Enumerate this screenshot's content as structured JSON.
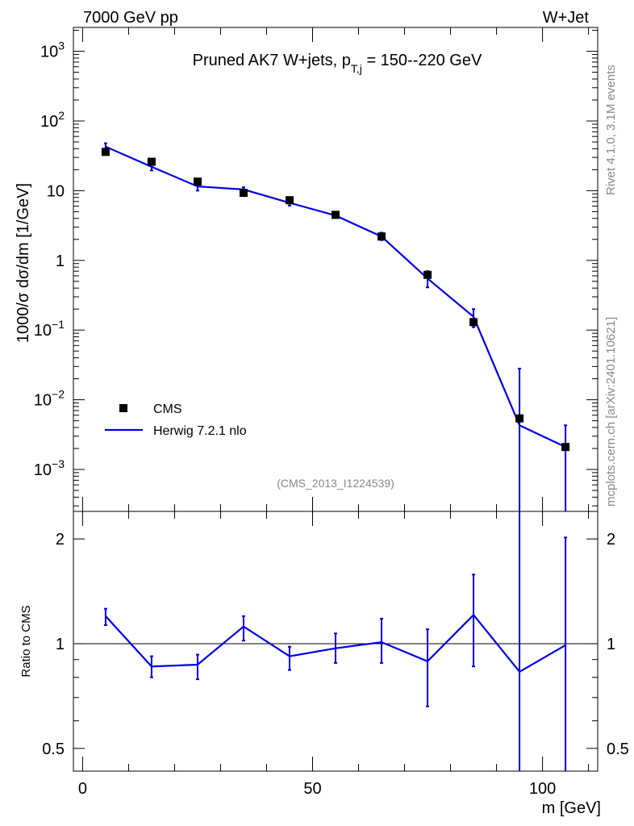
{
  "header": {
    "left_label": "7000 GeV pp",
    "right_label": "W+Jet"
  },
  "side_labels": {
    "rivet": "Rivet 4.1.0,  3.1M events",
    "mcplots": "mcplots.cern.ch [arXiv:2401.10621]"
  },
  "colors": {
    "data": "#000000",
    "mc": "#0000e6",
    "text_gray": "#888888"
  },
  "chart_data": [
    {
      "type": "scatter",
      "panel": "main",
      "title_pre": "Pruned AK7 W+jets, p",
      "title_sub": "T,j",
      "title_post": " = 150--220 GeV",
      "analysis_id": "(CMS_2013_I1224539)",
      "xlabel": "m [GeV]",
      "ylabel": "1000/σ  dσ/dm [1/GeV]",
      "yscale": "log",
      "xlim": [
        -2,
        112
      ],
      "ylim": [
        0.00025,
        2200
      ],
      "x_ticks": [
        0,
        50,
        100
      ],
      "y_tick_labels": [
        {
          "value": 1000,
          "base": "10",
          "exp": "3"
        },
        {
          "value": 100,
          "base": "10",
          "exp": "2"
        },
        {
          "value": 10,
          "base": "10",
          "exp": ""
        },
        {
          "value": 1,
          "base": "1",
          "exp": ""
        },
        {
          "value": 0.1,
          "base": "10",
          "exp": "−1"
        },
        {
          "value": 0.01,
          "base": "10",
          "exp": "−2"
        },
        {
          "value": 0.001,
          "base": "10",
          "exp": "−3"
        }
      ],
      "legend_placement": "lower-left",
      "series": [
        {
          "name": "CMS",
          "style": "markers",
          "x": [
            5,
            15,
            25,
            35,
            45,
            55,
            65,
            75,
            85,
            95,
            105
          ],
          "y": [
            36,
            26,
            13.5,
            9.3,
            7.3,
            4.5,
            2.2,
            0.62,
            0.13,
            0.0054,
            0.0021
          ]
        },
        {
          "name": "Herwig 7.2.1 nlo",
          "style": "line",
          "x": [
            5,
            15,
            25,
            35,
            45,
            55,
            65,
            75,
            85,
            95,
            105
          ],
          "y": [
            43,
            22,
            11.5,
            10.4,
            6.7,
            4.4,
            2.2,
            0.55,
            0.155,
            0.0043,
            0.0021
          ],
          "err_lo": [
            37,
            19.5,
            10,
            9.3,
            6.1,
            4.1,
            1.95,
            0.41,
            0.11,
            0.0001,
            0.0001
          ],
          "err_hi": [
            48,
            24,
            13,
            11.2,
            7.3,
            4.8,
            2.5,
            0.7,
            0.2,
            0.028,
            0.0043
          ]
        }
      ]
    },
    {
      "type": "line",
      "panel": "ratio",
      "ylabel": "Ratio to CMS",
      "yscale": "log",
      "ylim": [
        0.43,
        2.4
      ],
      "y_ticks": [
        {
          "value": 0.5,
          "label": "0.5"
        },
        {
          "value": 1,
          "label": "1"
        },
        {
          "value": 2,
          "label": "2"
        }
      ],
      "reference_line": 1,
      "series": [
        {
          "name": "Herwig 7.2.1 nlo / CMS",
          "x": [
            5,
            15,
            25,
            35,
            45,
            55,
            65,
            75,
            85,
            95,
            105
          ],
          "y": [
            1.2,
            0.86,
            0.87,
            1.12,
            0.92,
            0.97,
            1.01,
            0.89,
            1.21,
            0.83,
            0.99
          ],
          "err_lo": [
            1.13,
            0.8,
            0.79,
            1.02,
            0.84,
            0.88,
            0.88,
            0.66,
            0.86,
            0.3,
            0.3
          ],
          "err_hi": [
            1.26,
            0.92,
            0.93,
            1.2,
            0.98,
            1.07,
            1.18,
            1.1,
            1.58,
            3,
            2.02
          ]
        }
      ]
    }
  ]
}
